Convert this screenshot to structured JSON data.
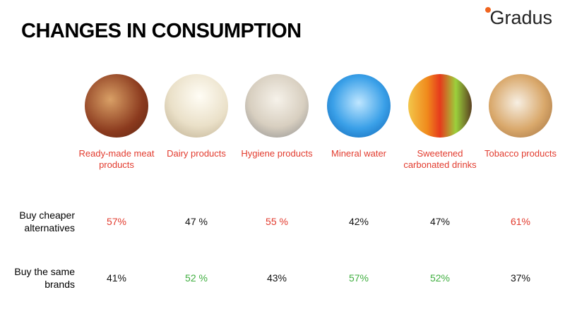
{
  "header": {
    "title": "CHANGES IN CONSUMPTION",
    "logo": "Gradus"
  },
  "table": {
    "columns": [
      "Ready-made meat products",
      "Dairy products",
      "Hygiene products",
      "Mineral water",
      "Sweetened carbonated drinks",
      "Tobacco products"
    ],
    "column_color": "#e23b2e",
    "rows": [
      {
        "label": "Buy cheaper alternatives",
        "cells": [
          "57%",
          "47 %",
          "55 %",
          "42%",
          "47%",
          "61%"
        ],
        "colors": [
          "#e23b2e",
          "#111111",
          "#e23b2e",
          "#111111",
          "#111111",
          "#e23b2e"
        ]
      },
      {
        "label": "Buy the same brands",
        "cells": [
          "41%",
          "52 %",
          "43%",
          "57%",
          "52%",
          "37%"
        ],
        "colors": [
          "#111111",
          "#3fae3f",
          "#111111",
          "#3fae3f",
          "#3fae3f",
          "#111111"
        ]
      }
    ]
  }
}
